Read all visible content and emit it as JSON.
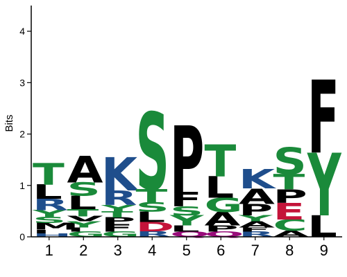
{
  "chart_data": {
    "type": "sequence-logo",
    "ylabel": "Bits",
    "ylim": [
      0,
      4.5
    ],
    "yticks": [
      "0",
      "1",
      "2",
      "3",
      "4"
    ],
    "positions": [
      "1",
      "2",
      "3",
      "4",
      "5",
      "6",
      "7",
      "8",
      "9"
    ],
    "colors": {
      "hydrophobic": "#000000",
      "polar": "#1a8a3a",
      "basic": "#1f4e8c",
      "acidic": "#c4143a",
      "amide": "#990b7a"
    },
    "letter_colors": {
      "A": "#000000",
      "V": "#000000",
      "L": "#000000",
      "I": "#000000",
      "P": "#000000",
      "F": "#000000",
      "M": "#000000",
      "W": "#000000",
      "G": "#1a8a3a",
      "S": "#1a8a3a",
      "T": "#1a8a3a",
      "Y": "#1a8a3a",
      "C": "#1a8a3a",
      "K": "#1f4e8c",
      "R": "#1f4e8c",
      "H": "#1f4e8c",
      "D": "#c4143a",
      "E": "#c4143a",
      "N": "#990b7a",
      "Q": "#990b7a"
    },
    "columns": [
      {
        "position": "1",
        "stack": [
          {
            "letter": "H",
            "bits": 0.07
          },
          {
            "letter": "I",
            "bits": 0.07
          },
          {
            "letter": "M",
            "bits": 0.13
          },
          {
            "letter": "S",
            "bits": 0.12
          },
          {
            "letter": "Y",
            "bits": 0.13
          },
          {
            "letter": "R",
            "bits": 0.22
          },
          {
            "letter": "L",
            "bits": 0.28
          },
          {
            "letter": "T",
            "bits": 0.42
          }
        ]
      },
      {
        "position": "2",
        "stack": [
          {
            "letter": "G",
            "bits": 0.1
          },
          {
            "letter": "I",
            "bits": 0.08
          },
          {
            "letter": "Y",
            "bits": 0.12
          },
          {
            "letter": "V",
            "bits": 0.1
          },
          {
            "letter": "T",
            "bits": 0.14
          },
          {
            "letter": "L",
            "bits": 0.26
          },
          {
            "letter": "S",
            "bits": 0.26
          },
          {
            "letter": "A",
            "bits": 0.52
          }
        ]
      },
      {
        "position": "3",
        "stack": [
          {
            "letter": "G",
            "bits": 0.1
          },
          {
            "letter": "F",
            "bits": 0.15
          },
          {
            "letter": "P",
            "bits": 0.13
          },
          {
            "letter": "T",
            "bits": 0.12
          },
          {
            "letter": "Y",
            "bits": 0.12
          },
          {
            "letter": "R",
            "bits": 0.28
          },
          {
            "letter": "K",
            "bits": 0.65
          }
        ]
      },
      {
        "position": "4",
        "stack": [
          {
            "letter": "R",
            "bits": 0.11
          },
          {
            "letter": "D",
            "bits": 0.18
          },
          {
            "letter": "L",
            "bits": 0.2
          },
          {
            "letter": "S",
            "bits": 0.18
          },
          {
            "letter": "T",
            "bits": 0.26
          },
          {
            "letter": "S",
            "bits": 1.5
          }
        ]
      },
      {
        "position": "5",
        "stack": [
          {
            "letter": "Q",
            "bits": 0.1
          },
          {
            "letter": "L",
            "bits": 0.12
          },
          {
            "letter": "Y",
            "bits": 0.2
          },
          {
            "letter": "S",
            "bits": 0.17
          },
          {
            "letter": "F",
            "bits": 0.28
          },
          {
            "letter": "P",
            "bits": 1.3
          }
        ]
      },
      {
        "position": "6",
        "stack": [
          {
            "letter": "Q",
            "bits": 0.1
          },
          {
            "letter": "P",
            "bits": 0.12
          },
          {
            "letter": "A",
            "bits": 0.26
          },
          {
            "letter": "G",
            "bits": 0.28
          },
          {
            "letter": "L",
            "bits": 0.42
          },
          {
            "letter": "T",
            "bits": 0.62
          }
        ]
      },
      {
        "position": "7",
        "stack": [
          {
            "letter": "R",
            "bits": 0.1
          },
          {
            "letter": "F",
            "bits": 0.08
          },
          {
            "letter": "A",
            "bits": 0.12
          },
          {
            "letter": "Y",
            "bits": 0.12
          },
          {
            "letter": "P",
            "bits": 0.22
          },
          {
            "letter": "A",
            "bits": 0.3
          },
          {
            "letter": "K",
            "bits": 0.38
          }
        ]
      },
      {
        "position": "8",
        "stack": [
          {
            "letter": "A",
            "bits": 0.12
          },
          {
            "letter": "C",
            "bits": 0.22
          },
          {
            "letter": "E",
            "bits": 0.32
          },
          {
            "letter": "P",
            "bits": 0.26
          },
          {
            "letter": "T",
            "bits": 0.3
          },
          {
            "letter": "S",
            "bits": 0.52
          }
        ]
      },
      {
        "position": "9",
        "stack": [
          {
            "letter": "L",
            "bits": 0.42
          },
          {
            "letter": "Y",
            "bits": 1.22
          },
          {
            "letter": "F",
            "bits": 1.42
          }
        ]
      }
    ]
  }
}
